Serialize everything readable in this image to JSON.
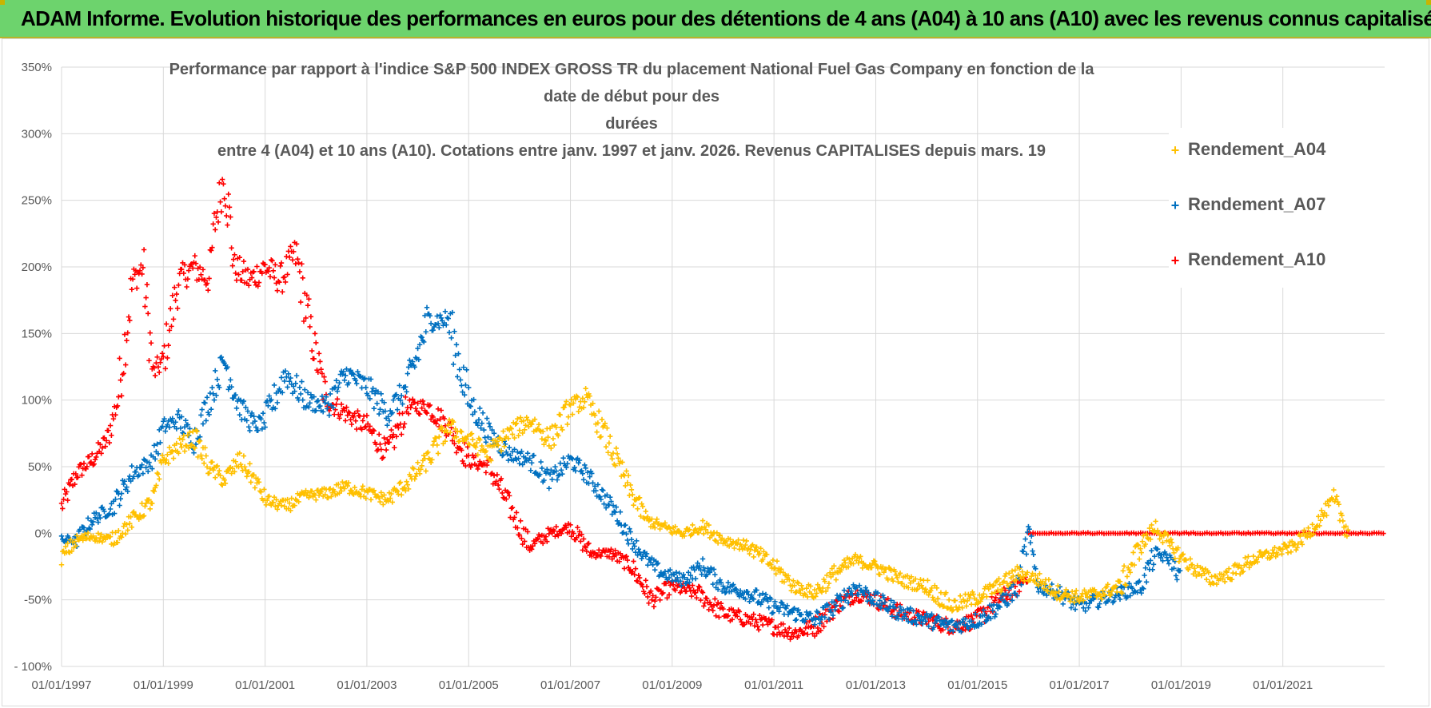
{
  "banner": {
    "title": "ADAM Informe. Evolution historique des performances en euros pour des détentions de 4 ans (A04) à 10 ans (A10) avec les revenus connus capitalisés"
  },
  "colors": {
    "banner_bg": "#6dd36d",
    "A04": "#ffc000",
    "A07": "#0070c0",
    "A10": "#ff0000",
    "grid": "#d9d9d9",
    "text": "#595959"
  },
  "chart_data": {
    "type": "scatter",
    "title_lines": [
      "Performance par rapport à l'indice S&P 500 INDEX GROSS TR  du placement National Fuel Gas Company en fonction de la date de début pour des",
      "durées",
      "entre 4 (A04) et 10 ans (A10). Cotations entre janv. 1997 et janv. 2026. Revenus CAPITALISES depuis mars. 19"
    ],
    "xlabel": "",
    "ylabel": "",
    "x_range": [
      1997.0,
      2023.0
    ],
    "ylim": [
      -100,
      350
    ],
    "y_ticks": [
      -100,
      -50,
      0,
      50,
      100,
      150,
      200,
      250,
      300,
      350
    ],
    "y_tick_labels": [
      "- 100%",
      "-50%",
      "0%",
      "50%",
      "100%",
      "150%",
      "200%",
      "250%",
      "300%",
      "350%"
    ],
    "x_ticks": [
      1997,
      1999,
      2001,
      2003,
      2005,
      2007,
      2009,
      2011,
      2013,
      2015,
      2017,
      2019,
      2021
    ],
    "x_tick_labels": [
      "01/01/1997",
      "01/01/1999",
      "01/01/2001",
      "01/01/2003",
      "01/01/2005",
      "01/01/2007",
      "01/01/2009",
      "01/01/2011",
      "01/01/2013",
      "01/01/2015",
      "01/01/2017",
      "01/01/2019",
      "01/01/2021"
    ],
    "legend": [
      "Rendement_A04",
      "Rendement_A07",
      "Rendement_A10"
    ],
    "legend_position": "top-right",
    "series": [
      {
        "name": "Rendement_A04",
        "color": "#ffc000",
        "x": [
          1997.0,
          1997.3,
          1997.6,
          1998.0,
          1998.4,
          1998.8,
          1999.0,
          1999.3,
          1999.6,
          1999.9,
          2000.2,
          2000.5,
          2000.8,
          2001.0,
          2001.4,
          2001.8,
          2002.2,
          2002.6,
          2003.0,
          2003.4,
          2003.8,
          2004.2,
          2004.6,
          2005.0,
          2005.4,
          2005.8,
          2006.2,
          2006.6,
          2007.0,
          2007.3,
          2007.6,
          2007.9,
          2008.2,
          2008.5,
          2008.8,
          2009.2,
          2009.6,
          2010.0,
          2010.5,
          2011.0,
          2011.4,
          2011.8,
          2012.2,
          2012.6,
          2013.0,
          2013.5,
          2014.0,
          2014.5,
          2015.0,
          2015.4,
          2015.8,
          2016.2,
          2016.6,
          2017.0,
          2017.4,
          2017.8,
          2018.2,
          2018.5,
          2018.8,
          2019.2,
          2019.6,
          2020.0,
          2020.4,
          2020.8,
          2021.2,
          2021.5,
          2021.8,
          2022.0,
          2022.3
        ],
        "y": [
          -18,
          -5,
          -2,
          -5,
          10,
          25,
          55,
          65,
          72,
          50,
          40,
          55,
          40,
          25,
          20,
          28,
          30,
          35,
          30,
          25,
          38,
          55,
          80,
          70,
          60,
          75,
          85,
          70,
          95,
          100,
          80,
          55,
          30,
          10,
          5,
          0,
          5,
          -5,
          -10,
          -25,
          -40,
          -45,
          -30,
          -20,
          -25,
          -35,
          -40,
          -55,
          -48,
          -40,
          -30,
          -35,
          -45,
          -48,
          -45,
          -40,
          -10,
          5,
          -10,
          -25,
          -35,
          -30,
          -20,
          -15,
          -10,
          0,
          15,
          25,
          0
        ]
      },
      {
        "name": "Rendement_A07",
        "color": "#0070c0",
        "x": [
          1997.0,
          1997.3,
          1997.6,
          1998.0,
          1998.4,
          1998.8,
          1999.0,
          1999.3,
          1999.6,
          1999.9,
          2000.2,
          2000.5,
          2000.8,
          2001.0,
          2001.4,
          2001.8,
          2002.2,
          2002.6,
          2003.0,
          2003.4,
          2003.8,
          2004.2,
          2004.6,
          2005.0,
          2005.4,
          2005.8,
          2006.2,
          2006.6,
          2007.0,
          2007.3,
          2007.6,
          2007.9,
          2008.2,
          2008.5,
          2008.8,
          2009.2,
          2009.6,
          2010.0,
          2010.5,
          2011.0,
          2011.4,
          2011.8,
          2012.2,
          2012.6,
          2013.0,
          2013.5,
          2014.0,
          2014.5,
          2015.0,
          2015.4,
          2015.8,
          2016.0,
          2016.2,
          2016.6,
          2017.0,
          2017.4,
          2017.8,
          2018.2,
          2018.5,
          2018.8,
          2019.0
        ],
        "y": [
          -5,
          -5,
          10,
          20,
          45,
          55,
          80,
          85,
          70,
          100,
          130,
          95,
          80,
          85,
          120,
          100,
          95,
          120,
          110,
          90,
          110,
          160,
          160,
          100,
          75,
          60,
          55,
          40,
          55,
          45,
          30,
          15,
          -5,
          -20,
          -30,
          -35,
          -25,
          -40,
          -45,
          -55,
          -60,
          -65,
          -55,
          -40,
          -50,
          -60,
          -65,
          -70,
          -65,
          -55,
          -40,
          0,
          -40,
          -45,
          -55,
          -50,
          -45,
          -40,
          -15,
          -20,
          -35
        ]
      },
      {
        "name": "Rendement_A10",
        "color": "#ff0000",
        "x": [
          1997.0,
          1997.3,
          1997.6,
          1997.9,
          1998.1,
          1998.4,
          1998.6,
          1998.8,
          1999.0,
          1999.3,
          1999.6,
          1999.9,
          2000.0,
          2000.2,
          2000.4,
          2000.7,
          2001.0,
          2001.3,
          2001.6,
          2001.9,
          2002.2,
          2002.6,
          2003.0,
          2003.4,
          2003.8,
          2004.2,
          2004.6,
          2005.0,
          2005.4,
          2005.8,
          2006.2,
          2006.6,
          2007.0,
          2007.4,
          2007.8,
          2008.2,
          2008.6,
          2009.0,
          2009.5,
          2010.0,
          2010.5,
          2011.0,
          2011.4,
          2011.8,
          2012.2,
          2012.6,
          2013.0,
          2013.5,
          2014.0,
          2014.5,
          2015.0,
          2015.4,
          2015.8,
          2016.0
        ],
        "y": [
          20,
          45,
          55,
          70,
          100,
          190,
          200,
          120,
          130,
          190,
          200,
          190,
          230,
          270,
          200,
          190,
          200,
          190,
          210,
          150,
          100,
          90,
          80,
          60,
          95,
          95,
          80,
          55,
          50,
          20,
          -10,
          0,
          5,
          -15,
          -15,
          -25,
          -50,
          -40,
          -45,
          -60,
          -65,
          -70,
          -75,
          -70,
          -55,
          -45,
          -50,
          -60,
          -65,
          -70,
          -65,
          -50,
          -40,
          -30
        ]
      },
      {
        "name": "Rendement_A10 (flat)",
        "color": "#ff0000",
        "x_start": 2016.0,
        "x_end": 2023.0,
        "y": 0
      }
    ]
  }
}
